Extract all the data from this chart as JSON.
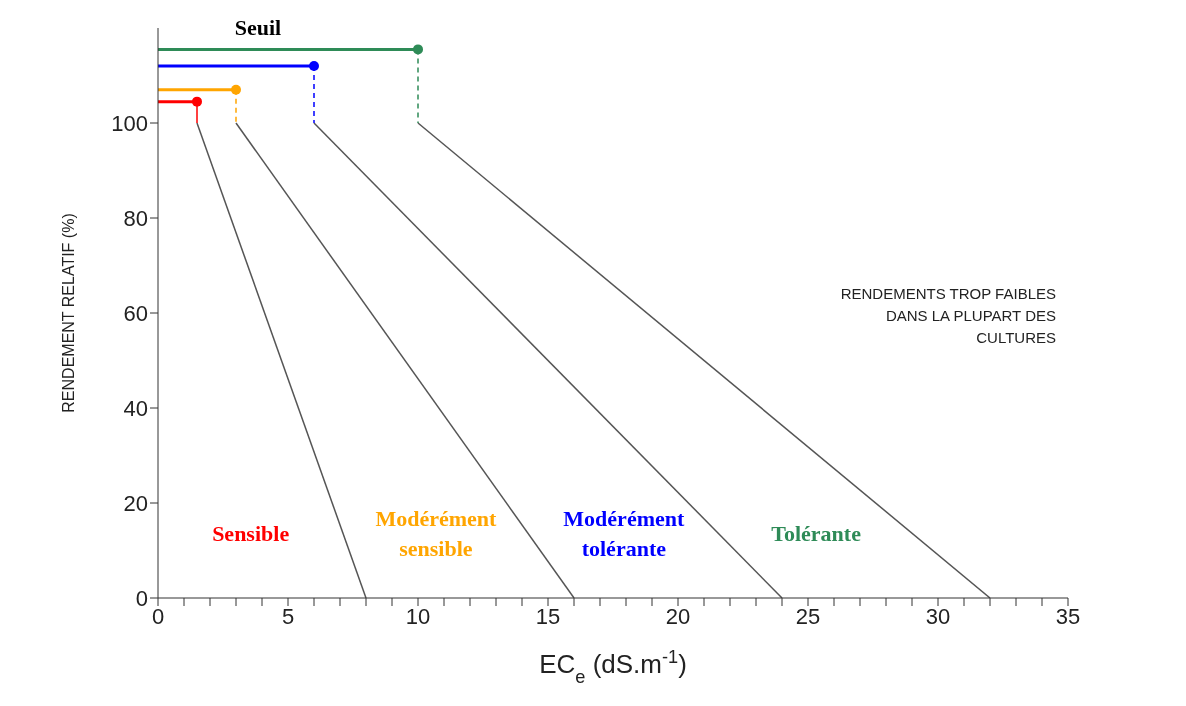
{
  "chart_data": {
    "type": "line",
    "xlabel": "EC$_{e}$  (dS.m$^{-1}$)",
    "ylabel": "RENDEMENT RELATIF  (%)",
    "xlim": [
      0,
      35
    ],
    "ylim": [
      0,
      120
    ],
    "xticks": [
      0,
      {
        "value": 1,
        "label": null
      },
      {
        "value": 2,
        "label": null
      },
      {
        "value": 3,
        "label": null
      },
      {
        "value": 4,
        "label": null
      },
      5,
      {
        "value": 6,
        "label": null
      },
      {
        "value": 7,
        "label": null
      },
      {
        "value": 8,
        "label": null
      },
      {
        "value": 9,
        "label": null
      },
      10,
      {
        "value": 11,
        "label": null
      },
      {
        "value": 12,
        "label": null
      },
      {
        "value": 13,
        "label": null
      },
      {
        "value": 14,
        "label": null
      },
      15,
      {
        "value": 16,
        "label": null
      },
      {
        "value": 17,
        "label": null
      },
      {
        "value": 18,
        "label": null
      },
      {
        "value": 19,
        "label": null
      },
      20,
      {
        "value": 21,
        "label": null
      },
      {
        "value": 22,
        "label": null
      },
      {
        "value": 23,
        "label": null
      },
      {
        "value": 24,
        "label": null
      },
      25,
      {
        "value": 26,
        "label": null
      },
      {
        "value": 27,
        "label": null
      },
      {
        "value": 28,
        "label": null
      },
      {
        "value": 29,
        "label": null
      },
      30,
      {
        "value": 31,
        "label": null
      },
      {
        "value": 32,
        "label": null
      },
      {
        "value": 33,
        "label": null
      },
      {
        "value": 34,
        "label": null
      },
      35
    ],
    "yticks": [
      0,
      20,
      40,
      60,
      80,
      100
    ],
    "grid": false,
    "legend": false,
    "series": [
      {
        "color": "#555555",
        "x": [
          1.5,
          8
        ],
        "values": [
          100,
          0
        ],
        "line_style": "solid",
        "marker": "none"
      },
      {
        "color": "#555555",
        "x": [
          3,
          16
        ],
        "values": [
          100,
          0
        ],
        "line_style": "solid",
        "marker": "none"
      },
      {
        "color": "#555555",
        "x": [
          6,
          24
        ],
        "values": [
          100,
          0
        ],
        "line_style": "solid",
        "marker": "none"
      },
      {
        "color": "#555555",
        "x": [
          10,
          32
        ],
        "values": [
          100,
          0
        ],
        "line_style": "solid",
        "marker": "none"
      },
      {
        "name": "Sensible",
        "color": "#ff0000",
        "x": [
          0,
          1.5
        ],
        "values": [
          104.5,
          104.5
        ],
        "line_style": "solid",
        "marker": "circle"
      },
      {
        "name": "Modérément\nsensible",
        "color": "#ffa500",
        "x": [
          0,
          3
        ],
        "values": [
          107,
          107
        ],
        "line_style": "solid",
        "marker": "circle"
      },
      {
        "name": "Modérément\ntolérante",
        "color": "#0000ff",
        "x": [
          0,
          6
        ],
        "values": [
          112,
          112
        ],
        "line_style": "solid",
        "marker": "circle"
      },
      {
        "name": "Tolérante",
        "color": "#2e8b57",
        "x": [
          0,
          10
        ],
        "values": [
          115.5,
          115.5
        ],
        "line_style": "solid",
        "marker": "circle"
      },
      {
        "color": "#ff0000",
        "x": [
          1.5,
          1.5
        ],
        "values": [
          104.5,
          100
        ],
        "line_style": "solid",
        "marker": "none"
      },
      {
        "color": "#ffa500",
        "x": [
          3,
          3
        ],
        "values": [
          107,
          100
        ],
        "line_style": "dashed",
        "marker": "none"
      },
      {
        "color": "#0000ff",
        "x": [
          6,
          6
        ],
        "values": [
          112,
          100
        ],
        "line_style": "dashed",
        "marker": "none"
      },
      {
        "color": "#2e8b57",
        "x": [
          10,
          10
        ],
        "values": [
          115.5,
          100
        ],
        "line_style": "dashed",
        "marker": "none"
      }
    ],
    "annotations": [
      "Seuil",
      "RENDEMENTS TROP FAIBLES\nDANS LA PLUPART DES\nCULTURES"
    ]
  }
}
